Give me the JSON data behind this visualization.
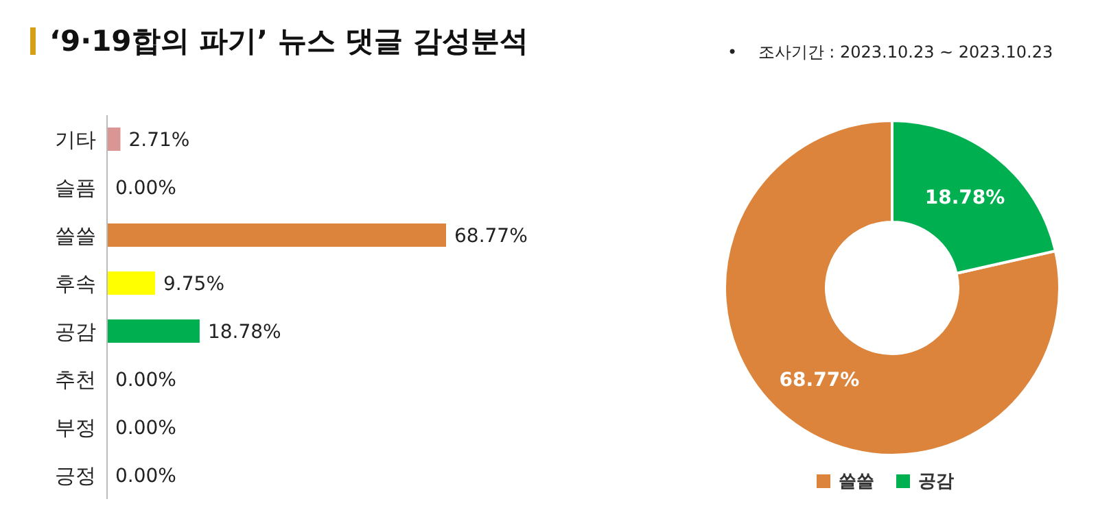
{
  "chart_data": [
    {
      "type": "bar",
      "orientation": "horizontal",
      "title": "‘9·19합의 파기’ 뉴스 댓글 감성분석",
      "categories": [
        "기타",
        "슬픔",
        "쓸쓸",
        "후속",
        "공감",
        "추천",
        "부정",
        "긍정"
      ],
      "values": [
        2.71,
        0,
        68.77,
        9.75,
        18.78,
        0,
        0,
        0
      ],
      "colors": [
        "#d99694",
        null,
        "#dc843c",
        "#ffff00",
        "#00b050",
        null,
        null,
        null
      ],
      "value_labels": [
        "2.71%",
        "0.00%",
        "68.77%",
        "9.75%",
        "18.78%",
        "0.00%",
        "0.00%",
        "0.00%"
      ],
      "annotations": [
        "•    조사기간 : 2023.10.23 ~ 2023.10.23"
      ]
    },
    {
      "type": "donut",
      "categories": [
        "쓸쓸",
        "공감"
      ],
      "values": [
        68.77,
        18.78
      ],
      "colors": [
        "#dc843c",
        "#00b050"
      ],
      "value_labels": [
        "68.77%",
        "18.78%"
      ],
      "legend": "bottom"
    }
  ]
}
